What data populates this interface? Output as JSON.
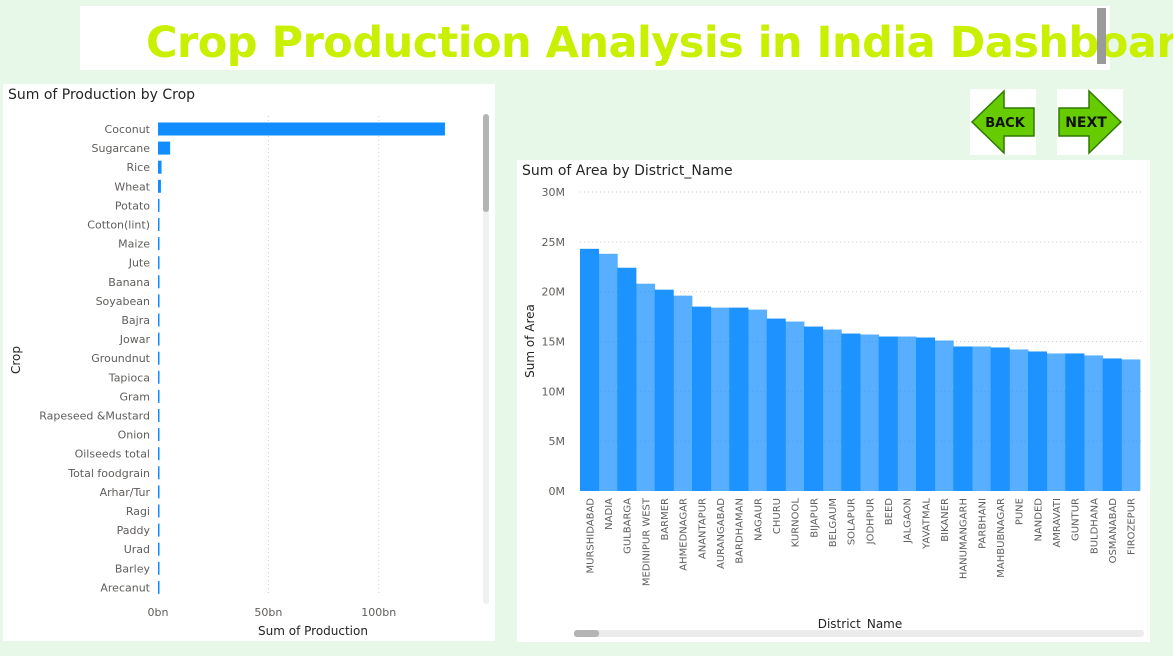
{
  "header": {
    "title": "Crop Production Analysis in India Dashboard"
  },
  "nav": {
    "back_label": "BACK",
    "next_label": "NEXT",
    "arrow_color": "#66cc00"
  },
  "chart_data": [
    {
      "type": "bar",
      "orientation": "horizontal",
      "title": "Sum of Production by Crop",
      "xlabel": "Sum of Production",
      "ylabel": "Crop",
      "xlim": [
        0,
        130
      ],
      "xticks": [
        "0bn",
        "50bn",
        "100bn"
      ],
      "xtick_values": [
        0,
        50,
        100
      ],
      "unit": "bn",
      "categories": [
        "Coconut",
        "Sugarcane",
        "Rice",
        "Wheat",
        "Potato",
        "Cotton(lint)",
        "Maize",
        "Jute",
        "Banana",
        "Soyabean",
        "Bajra",
        "Jowar",
        "Groundnut",
        "Tapioca",
        "Gram",
        "Rapeseed &Mustard",
        "Onion",
        "Oilseeds total",
        "Total foodgrain",
        "Arhar/Tur",
        "Ragi",
        "Paddy",
        "Urad",
        "Barley",
        "Arecanut"
      ],
      "values": [
        129.98,
        5.5,
        1.6,
        1.33,
        0.42,
        0.3,
        0.28,
        0.18,
        0.15,
        0.14,
        0.09,
        0.09,
        0.09,
        0.08,
        0.05,
        0.05,
        0.05,
        0.04,
        0.04,
        0.03,
        0.03,
        0.03,
        0.02,
        0.02,
        0.02
      ],
      "bar_color": "#118dff",
      "grid": true
    },
    {
      "type": "bar",
      "orientation": "vertical",
      "title": "Sum of Area by District_Name",
      "xlabel": "District_Name",
      "ylabel": "Sum of Area",
      "ylim": [
        0,
        30
      ],
      "yticks": [
        "0M",
        "5M",
        "10M",
        "15M",
        "20M",
        "25M",
        "30M"
      ],
      "ytick_values": [
        0,
        5,
        10,
        15,
        20,
        25,
        30
      ],
      "unit": "M",
      "categories": [
        "MURSHIDABAD",
        "NADIA",
        "GULBARGA",
        "MEDINIPUR WEST",
        "BARMER",
        "AHMEDNAGAR",
        "ANANTAPUR",
        "AURANGABAD",
        "BARDHAMAN",
        "NAGAUR",
        "CHURU",
        "KURNOOL",
        "BIJAPUR",
        "BELGAUM",
        "SOLAPUR",
        "JODHPUR",
        "BEED",
        "JALGAON",
        "YAVATMAL",
        "BIKANER",
        "HANUMANGARH",
        "PARBHANI",
        "MAHBUBNAGAR",
        "PUNE",
        "NANDED",
        "AMRAVATI",
        "GUNTUR",
        "BULDHANA",
        "OSMANABAD",
        "FIROZEPUR"
      ],
      "values": [
        24.3,
        23.8,
        22.4,
        20.8,
        20.2,
        19.6,
        18.5,
        18.4,
        18.4,
        18.2,
        17.3,
        17.0,
        16.5,
        16.2,
        15.8,
        15.7,
        15.5,
        15.5,
        15.4,
        15.1,
        14.5,
        14.5,
        14.4,
        14.2,
        14.0,
        13.8,
        13.8,
        13.6,
        13.3,
        13.2
      ],
      "bar_color": "#118dff",
      "grid": true
    }
  ]
}
